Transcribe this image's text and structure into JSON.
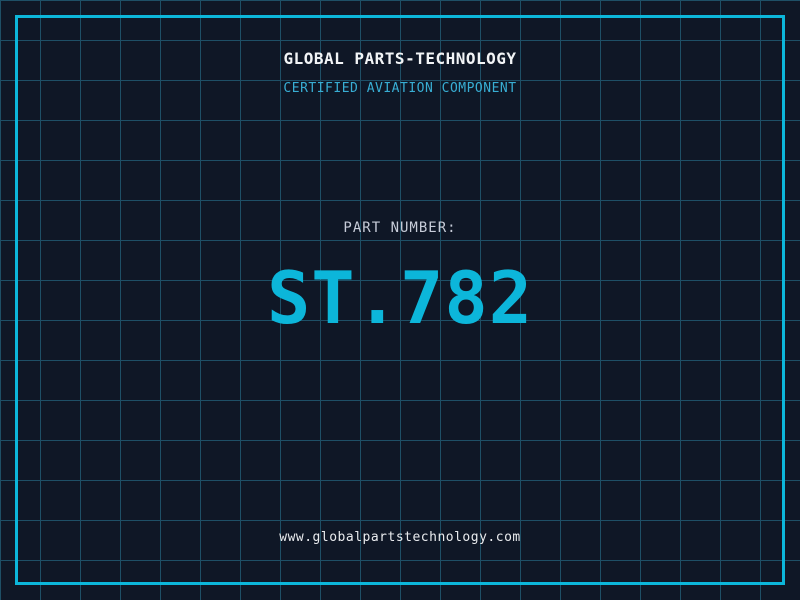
{
  "brand": {
    "title": "GLOBAL PARTS-TECHNOLOGY",
    "subtitle": "CERTIFIED AVIATION COMPONENT"
  },
  "part": {
    "label": "PART NUMBER:",
    "number": "ST.782"
  },
  "footer": {
    "website": "www.globalpartstechnology.com"
  },
  "colors": {
    "background": "#0f1726",
    "grid_line": "#1e4f66",
    "frame_cyan": "#0cb6da",
    "part_number_cyan": "#0cb6da",
    "subtitle_cyan": "#38aed4",
    "title_white": "#f2f4f6",
    "label_gray": "#c7ccd8",
    "footer_white": "#e9ebee"
  }
}
